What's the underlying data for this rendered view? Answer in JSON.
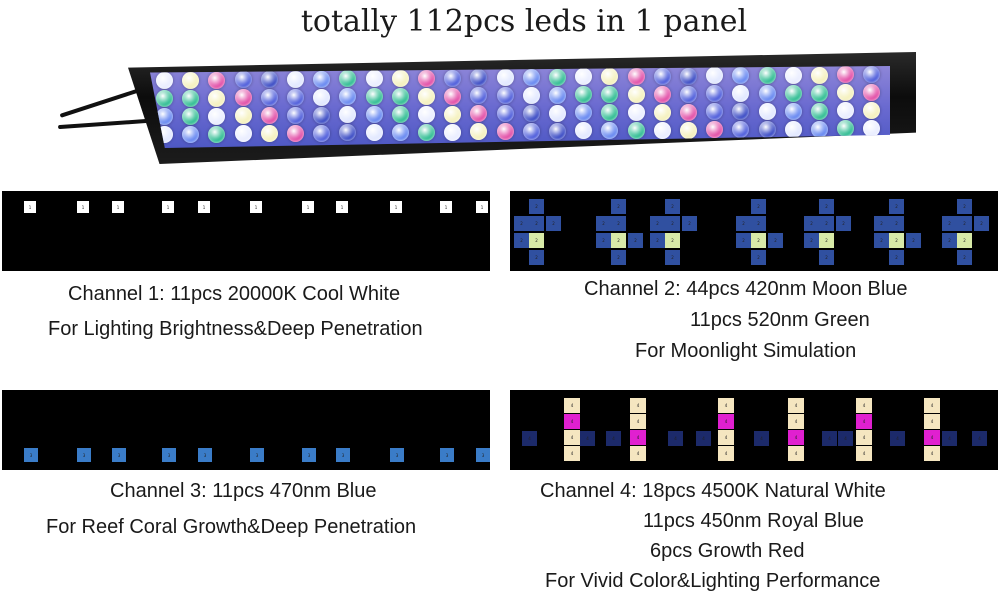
{
  "title": "totally 112pcs leds in 1 panel",
  "fixture": {
    "name": "112-LED aquarium light panel"
  },
  "channels": [
    {
      "diagram_led_color": "#ffffff",
      "lines": [
        "Channel 1: 11pcs 20000K Cool White",
        "For Lighting Brightness&Deep Penetration"
      ]
    },
    {
      "diagram_led_colors": [
        "#3050a0",
        "#d8eaa8"
      ],
      "lines": [
        "Channel 2: 44pcs 420nm Moon Blue",
        "11pcs 520nm Green",
        "For Moonlight Simulation"
      ]
    },
    {
      "diagram_led_color": "#3a7cc8",
      "lines": [
        "Channel 3: 11pcs 470nm Blue",
        "For Reef Coral Growth&Deep Penetration"
      ]
    },
    {
      "diagram_led_colors": [
        "#f5e6c0",
        "#1c2a6a",
        "#e020d0"
      ],
      "lines": [
        "Channel 4: 18pcs 4500K Natural White",
        "11pcs 450nm Royal Blue",
        "6pcs Growth Red",
        "For Vivid Color&Lighting Performance"
      ]
    }
  ]
}
